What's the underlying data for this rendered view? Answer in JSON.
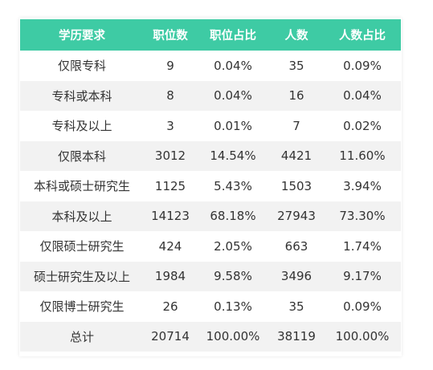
{
  "table": {
    "headers": [
      "学历要求",
      "职位数",
      "职位占比",
      "人数",
      "人数占比"
    ],
    "rows": [
      [
        "仅限专科",
        "9",
        "0.04%",
        "35",
        "0.09%"
      ],
      [
        "专科或本科",
        "8",
        "0.04%",
        "16",
        "0.04%"
      ],
      [
        "专科及以上",
        "3",
        "0.01%",
        "7",
        "0.02%"
      ],
      [
        "仅限本科",
        "3012",
        "14.54%",
        "4421",
        "11.60%"
      ],
      [
        "本科或硕士研究生",
        "1125",
        "5.43%",
        "1503",
        "3.94%"
      ],
      [
        "本科及以上",
        "14123",
        "68.18%",
        "27943",
        "73.30%"
      ],
      [
        "仅限硕士研究生",
        "424",
        "2.05%",
        "663",
        "1.74%"
      ],
      [
        "硕士研究生及以上",
        "1984",
        "9.58%",
        "3496",
        "9.17%"
      ],
      [
        "仅限博士研究生",
        "26",
        "0.13%",
        "35",
        "0.09%"
      ],
      [
        "总计",
        "20714",
        "100.00%",
        "38119",
        "100.00%"
      ]
    ]
  },
  "colors": {
    "header_bg": "#3ecba4",
    "header_text": "#ffffff",
    "stripe_bg": "#f2f2f2",
    "cell_text": "#333333"
  }
}
